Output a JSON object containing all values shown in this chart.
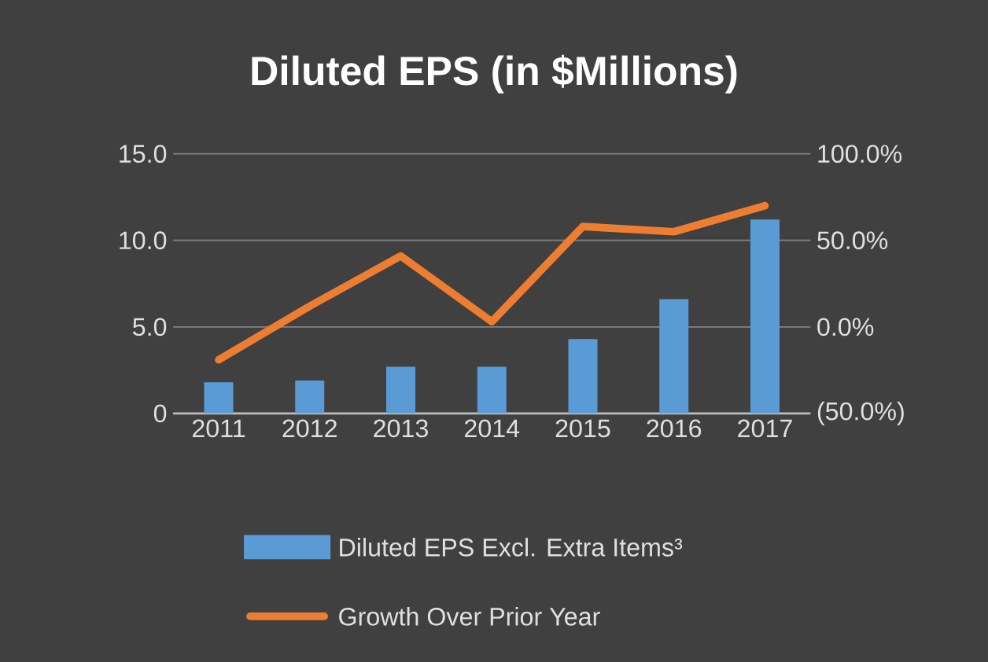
{
  "chart_data": {
    "type": "bar",
    "title": "Diluted EPS (in $Millions)",
    "categories": [
      "2011",
      "2012",
      "2013",
      "2014",
      "2015",
      "2016",
      "2017"
    ],
    "series": [
      {
        "name": "Diluted EPS Excl. Extra Items³",
        "color": "#5b9bd5",
        "values": [
          1.8,
          1.9,
          2.7,
          2.7,
          4.3,
          6.6,
          11.2
        ]
      },
      {
        "name": "Growth Over Prior Year",
        "type": "line",
        "axis": "y2",
        "color": "#ed7d31",
        "values": [
          -19,
          12,
          41,
          3,
          58,
          55,
          70
        ]
      }
    ],
    "ylim": [
      0,
      15
    ],
    "yticks": [
      {
        "value": 0,
        "label": "0"
      },
      {
        "value": 5,
        "label": "5.0"
      },
      {
        "value": 10,
        "label": "10.0"
      },
      {
        "value": 15,
        "label": "15.0"
      }
    ],
    "y2lim": [
      -50,
      100
    ],
    "y2ticks": [
      {
        "value": -50,
        "label": "(50.0%)"
      },
      {
        "value": 0,
        "label": "0.0%"
      },
      {
        "value": 50,
        "label": "50.0%"
      },
      {
        "value": 100,
        "label": "100.0%"
      }
    ],
    "grid": "y",
    "legend": "bottom",
    "marker": "none"
  }
}
